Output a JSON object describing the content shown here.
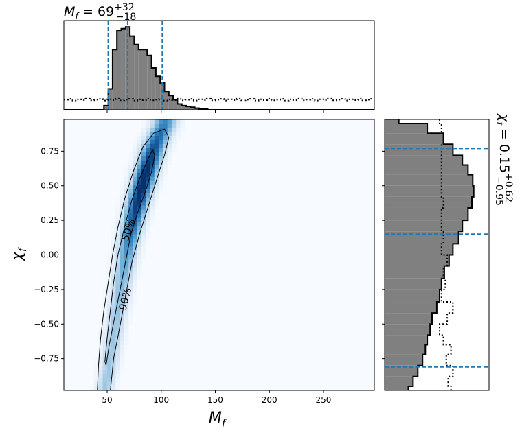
{
  "top_title": {
    "symbol": "M",
    "sub": "f",
    "eq": " = ",
    "value": "69",
    "sup": "+32",
    "sub_err": "−18"
  },
  "right_title": {
    "symbol": "χ",
    "sub": "f",
    "eq": " = ",
    "value": "0.15",
    "sup": "+0.62",
    "sub_err": "−0.95"
  },
  "contour_labels": [
    "50%",
    "90%"
  ],
  "colors": {
    "hist_fill": "#808080",
    "hist_edge": "#000000",
    "quantile_line": "#1f77b4",
    "cmap_low": "#f7fbff",
    "cmap_high": "#08306b"
  },
  "chart_data": [
    {
      "type": "heatmap",
      "name": "joint",
      "xlabel": "M_f",
      "ylabel": "χ_f",
      "xlim": [
        10,
        297
      ],
      "ylim": [
        -0.98,
        0.98
      ],
      "xticks": [
        50,
        100,
        150,
        200,
        250
      ],
      "yticks": [
        -0.75,
        -0.5,
        -0.25,
        0.0,
        0.25,
        0.5,
        0.75
      ],
      "xtick_labels": [
        "50",
        "100",
        "150",
        "200",
        "250"
      ],
      "ytick_labels": [
        "−0.75",
        "−0.50",
        "−0.25",
        "0.00",
        "0.25",
        "0.50",
        "0.75"
      ],
      "ridge": {
        "chi": [
          -0.98,
          -0.8,
          -0.6,
          -0.4,
          -0.2,
          0.0,
          0.2,
          0.4,
          0.6,
          0.75,
          0.85,
          0.95
        ],
        "m": [
          48,
          52,
          56,
          60,
          64,
          68,
          73,
          79,
          86,
          92,
          97,
          103
        ]
      },
      "contours": [
        {
          "level": "50%",
          "points": [
            [
              48,
              -0.77
            ],
            [
              50,
              -0.6
            ],
            [
              53,
              -0.4
            ],
            [
              56,
              -0.2
            ],
            [
              60,
              0.0
            ],
            [
              66,
              0.2
            ],
            [
              73,
              0.4
            ],
            [
              80,
              0.55
            ],
            [
              87,
              0.68
            ],
            [
              92,
              0.76
            ],
            [
              94,
              0.72
            ],
            [
              91,
              0.6
            ],
            [
              85,
              0.45
            ],
            [
              78,
              0.3
            ],
            [
              72,
              0.15
            ],
            [
              67,
              -0.05
            ],
            [
              62,
              -0.25
            ],
            [
              57,
              -0.45
            ],
            [
              52,
              -0.65
            ],
            [
              49,
              -0.8
            ],
            [
              48,
              -0.77
            ]
          ]
        },
        {
          "level": "90%",
          "points": [
            [
              41,
              -0.98
            ],
            [
              42,
              -0.8
            ],
            [
              44,
              -0.6
            ],
            [
              47,
              -0.4
            ],
            [
              51,
              -0.2
            ],
            [
              55,
              0.0
            ],
            [
              60,
              0.2
            ],
            [
              66,
              0.4
            ],
            [
              74,
              0.6
            ],
            [
              83,
              0.78
            ],
            [
              93,
              0.88
            ],
            [
              103,
              0.91
            ],
            [
              107,
              0.85
            ],
            [
              103,
              0.72
            ],
            [
              96,
              0.55
            ],
            [
              88,
              0.35
            ],
            [
              80,
              0.15
            ],
            [
              73,
              -0.05
            ],
            [
              67,
              -0.3
            ],
            [
              61,
              -0.55
            ],
            [
              56,
              -0.75
            ],
            [
              53,
              -0.98
            ]
          ]
        }
      ]
    },
    {
      "type": "bar",
      "name": "M_f marginal histogram",
      "xlim": [
        10,
        297
      ],
      "quantiles": [
        51,
        69,
        101
      ],
      "bins": [
        [
          10,
          47
        ],
        [
          47,
          51
        ],
        [
          51,
          55
        ],
        [
          55,
          59
        ],
        [
          59,
          63
        ],
        [
          63,
          67
        ],
        [
          67,
          71
        ],
        [
          71,
          75
        ],
        [
          75,
          79
        ],
        [
          79,
          83
        ],
        [
          83,
          87
        ],
        [
          87,
          91
        ],
        [
          91,
          95
        ],
        [
          95,
          99
        ],
        [
          99,
          103
        ],
        [
          103,
          107
        ],
        [
          107,
          111
        ],
        [
          111,
          115
        ],
        [
          115,
          119
        ],
        [
          119,
          123
        ],
        [
          123,
          127
        ],
        [
          127,
          131
        ],
        [
          131,
          135
        ],
        [
          135,
          139
        ],
        [
          139,
          143
        ],
        [
          143,
          297
        ]
      ],
      "values": [
        0.0,
        0.05,
        0.25,
        0.72,
        0.95,
        0.97,
        0.99,
        0.88,
        0.78,
        0.72,
        0.72,
        0.65,
        0.5,
        0.4,
        0.32,
        0.22,
        0.17,
        0.12,
        0.07,
        0.05,
        0.04,
        0.03,
        0.02,
        0.01,
        0.01,
        0.0
      ],
      "prior_level": 0.12
    },
    {
      "type": "bar",
      "name": "χ_f marginal histogram",
      "ylim": [
        -0.98,
        0.98
      ],
      "quantiles": [
        -0.81,
        0.15,
        0.77
      ],
      "bin_edges": [
        -0.98,
        -0.95,
        -0.88,
        -0.8,
        -0.72,
        -0.65,
        -0.58,
        -0.5,
        -0.42,
        -0.34,
        -0.25,
        -0.17,
        -0.08,
        0.0,
        0.08,
        0.17,
        0.25,
        0.34,
        0.42,
        0.5,
        0.58,
        0.65,
        0.72,
        0.8,
        0.88,
        0.95,
        0.98
      ],
      "values": [
        0.25,
        0.3,
        0.35,
        0.4,
        0.43,
        0.45,
        0.48,
        0.5,
        0.55,
        0.58,
        0.6,
        0.63,
        0.68,
        0.72,
        0.78,
        0.82,
        0.88,
        0.92,
        0.94,
        0.93,
        0.88,
        0.82,
        0.72,
        0.62,
        0.45,
        0.15
      ],
      "prior_values": [
        0.7,
        0.67,
        0.72,
        0.65,
        0.7,
        0.62,
        0.58,
        0.66,
        0.72,
        0.6,
        0.64,
        0.62,
        0.66,
        0.6,
        0.62,
        0.6,
        0.6,
        0.62,
        0.6,
        0.6,
        0.6,
        0.6,
        0.6,
        0.62,
        0.6,
        0.58
      ]
    }
  ]
}
